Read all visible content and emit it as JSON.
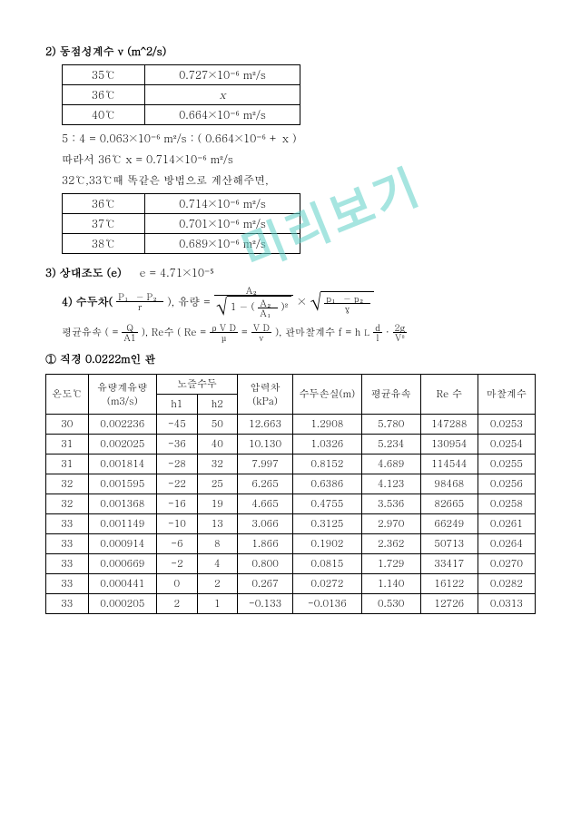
{
  "watermark": "미리보기",
  "sec2": {
    "title": "2) 동점성계수 ν (m^2/s)",
    "table1": {
      "rows": [
        [
          "35℃",
          "0.727×10⁻⁶ m²/s"
        ],
        [
          "36℃",
          "x"
        ],
        [
          "40℃",
          "0.664×10⁻⁶ m²/s"
        ]
      ]
    },
    "eq1": "5 : 4 =  0.063×10⁻⁶ m²/s : ( 0.664×10⁻⁶  +  x )",
    "eq2": "따라서 36℃  x =  0.714×10⁻⁶ m²/s",
    "eq3": "32℃,33℃때 똑같은 방법으로 계산해주면,",
    "table2": {
      "rows": [
        [
          "36℃",
          "0.714×10⁻⁶ m²/s"
        ],
        [
          "37℃",
          "0.701×10⁻⁶ m²/s"
        ],
        [
          "38℃",
          "0.689×10⁻⁶ m²/s"
        ]
      ]
    }
  },
  "sec3": {
    "title": "3) 상대조도 (e)",
    "value": "e =  4.71×10⁻⁵"
  },
  "sec4": {
    "title": "4) 수두차(",
    "p_frac_num": "P₁ − P₂",
    "p_frac_den": "r",
    "close": "),  유량 =",
    "a_num": "A₂",
    "a_den": "A₁",
    "sqrt_inner_prefix": "1 − (",
    "sqrt_inner_sq": ")²",
    "rhs_frac_num": "p₁ − p₂",
    "rhs_frac_den": "γ",
    "line2_prefix": "평균유속 ( =",
    "q_num": "Q",
    "q_den": "A1",
    "re_label": "), Re수 (  Re =",
    "re_num1": "ρ V D",
    "re_den1": "μ",
    "re_num2": "V D",
    "re_den2": "ν",
    "f_label": "),   관마찰계수   f =  h",
    "hL": "L",
    "dI_num": "d",
    "dI_den": "l",
    "gV_num": "2g",
    "gV_den": "V²"
  },
  "main": {
    "caption": "① 직경 0.0222m인 관",
    "headers1": [
      "온도℃",
      "유량계유량\n(m3/s)",
      "노즐수두",
      "압력차\n(kPa)",
      "수두손실(m)",
      "평균유속",
      "Re 수",
      "마찰계수"
    ],
    "headers2": [
      "h1",
      "h2"
    ],
    "rows": [
      [
        "30",
        "0.002236",
        "-45",
        "50",
        "12.663",
        "1.2908",
        "5.780",
        "147288",
        "0.0253"
      ],
      [
        "31",
        "0.002025",
        "-36",
        "40",
        "10.130",
        "1.0326",
        "5.234",
        "130954",
        "0.0254"
      ],
      [
        "31",
        "0.001814",
        "-28",
        "32",
        "7.997",
        "0.8152",
        "4.689",
        "114544",
        "0.0255"
      ],
      [
        "32",
        "0.001595",
        "-22",
        "25",
        "6.265",
        "0.6386",
        "4.123",
        "98468",
        "0.0256"
      ],
      [
        "32",
        "0.001368",
        "-16",
        "19",
        "4.665",
        "0.4755",
        "3.536",
        "82665",
        "0.0258"
      ],
      [
        "33",
        "0.001149",
        "-10",
        "13",
        "3.066",
        "0.3125",
        "2.970",
        "66249",
        "0.0261"
      ],
      [
        "33",
        "0.000914",
        "-6",
        "8",
        "1.866",
        "0.1902",
        "2.362",
        "50713",
        "0.0264"
      ],
      [
        "33",
        "0.000669",
        "-2",
        "4",
        "0.800",
        "0.0815",
        "1.729",
        "33417",
        "0.0270"
      ],
      [
        "33",
        "0.000441",
        "0",
        "2",
        "0.267",
        "0.0272",
        "1.140",
        "16122",
        "0.0282"
      ],
      [
        "33",
        "0.000205",
        "2",
        "1",
        "-0.133",
        "-0.0136",
        "0.530",
        "12726",
        "0.0313"
      ]
    ],
    "col_widths": [
      "36px",
      "64px",
      "34px",
      "34px",
      "50px",
      "64px",
      "54px",
      "52px",
      "52px"
    ]
  },
  "style": {
    "border_color": "#000000",
    "background": "#ffffff",
    "watermark_color": "#5ed1c8",
    "font_size_body": 12,
    "font_size_table": 11
  }
}
